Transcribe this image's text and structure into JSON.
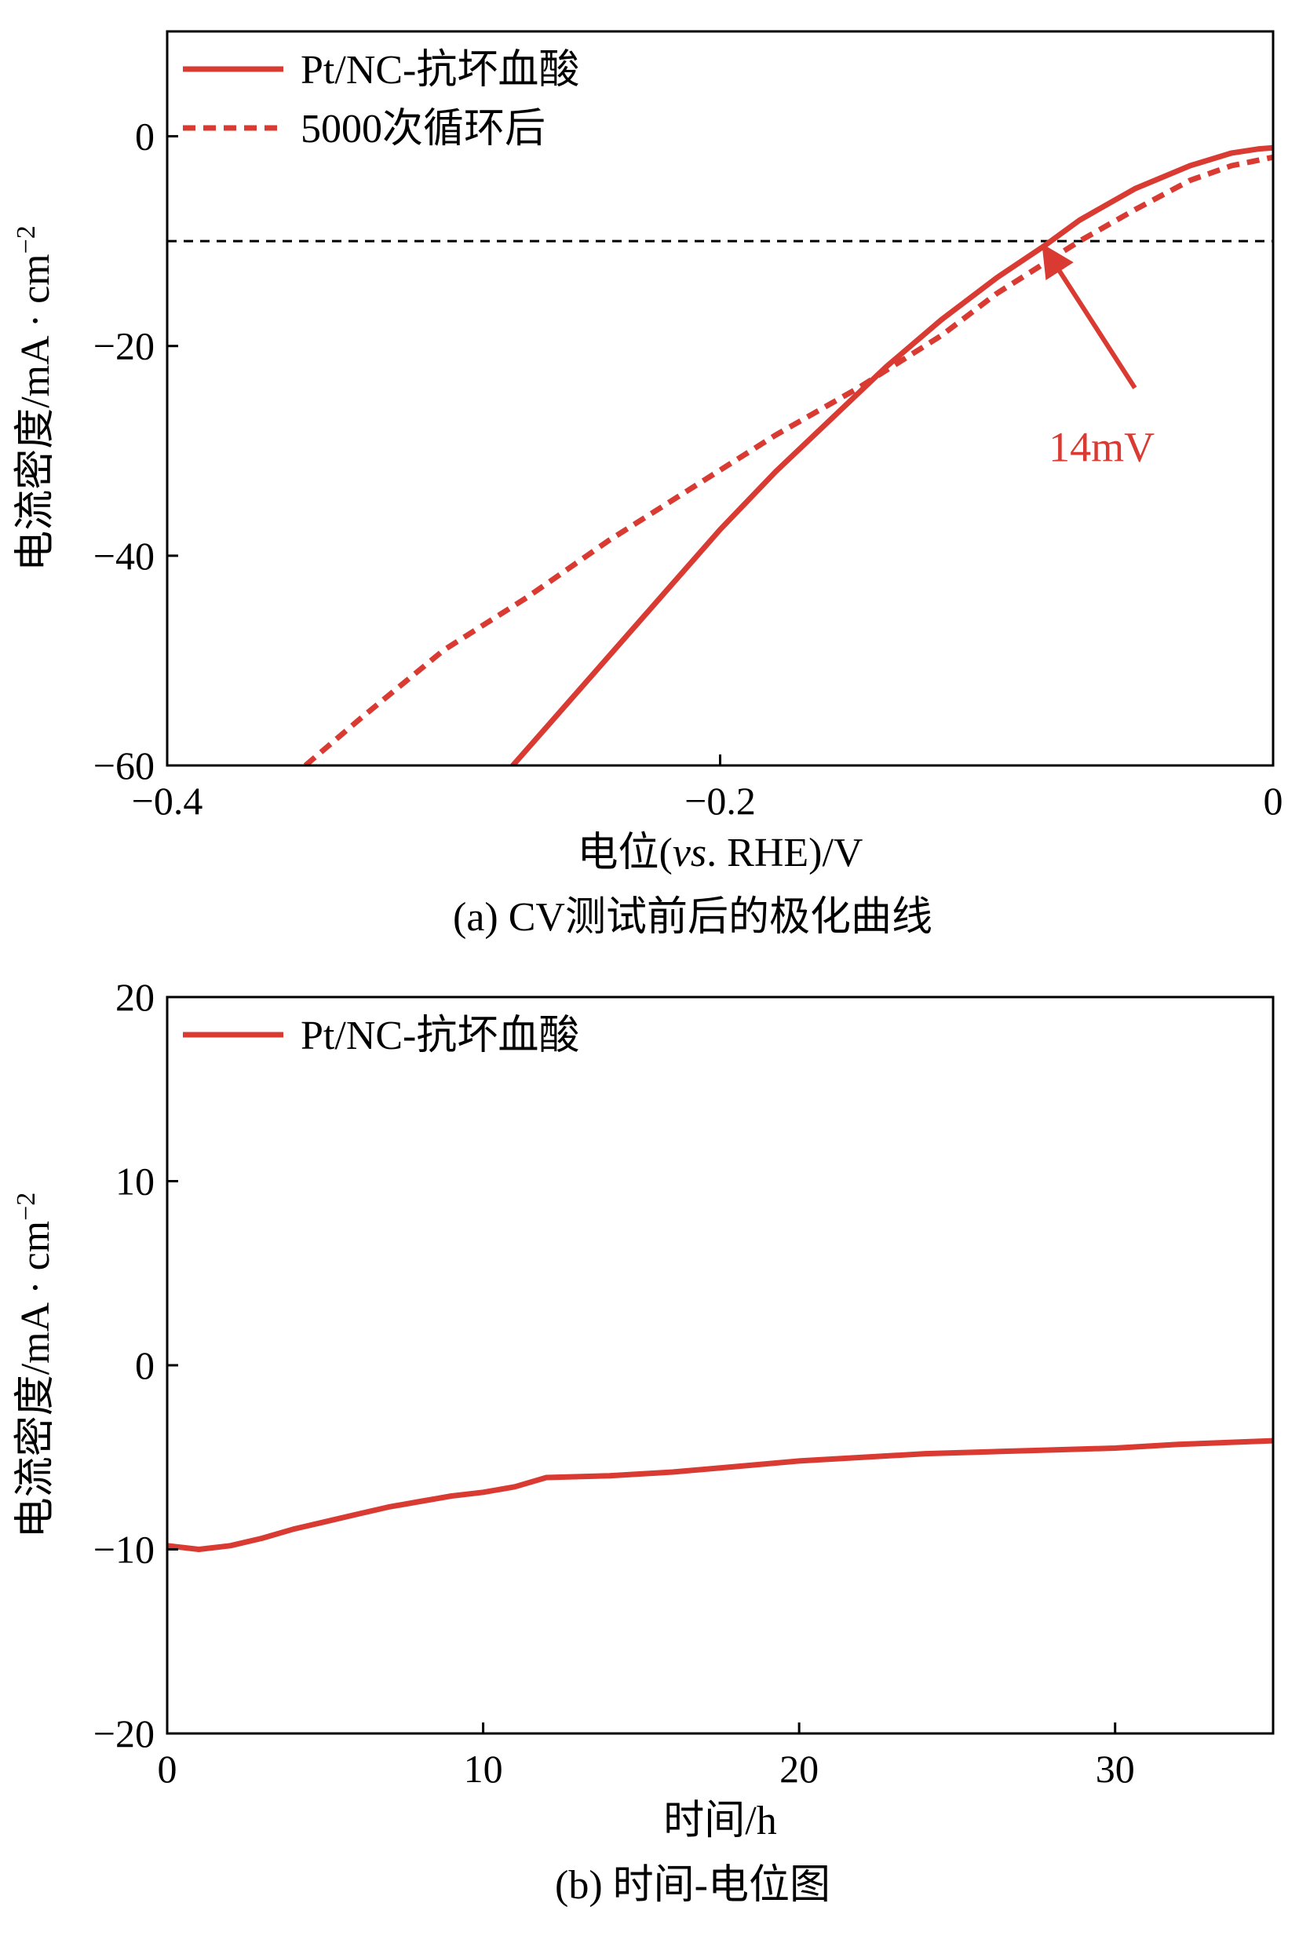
{
  "colors": {
    "series": "#d93a32",
    "reference": "#000000",
    "axis": "#000000"
  },
  "chart_data": [
    {
      "type": "line",
      "caption": "(a) CV测试前后的极化曲线",
      "xlabel_parts": [
        "电位(",
        "vs",
        ". RHE)/V"
      ],
      "ylabel": "电流密度/mA · cm",
      "ylabel_sup": "−2",
      "xlim": [
        -0.4,
        0
      ],
      "ylim": [
        -60,
        10
      ],
      "xticks": [
        -0.4,
        -0.2,
        0
      ],
      "xtick_labels": [
        "−0.4",
        "−0.2",
        "0"
      ],
      "yticks": [
        -60,
        -40,
        -20,
        0
      ],
      "ytick_labels": [
        "−60",
        "−40",
        "−20",
        "0"
      ],
      "legend_position": "top-left",
      "series": [
        {
          "name": "Pt/NC-抗坏血酸",
          "style": "solid",
          "x": [
            -0.275,
            -0.26,
            -0.24,
            -0.22,
            -0.2,
            -0.18,
            -0.16,
            -0.14,
            -0.12,
            -0.1,
            -0.083,
            -0.07,
            -0.05,
            -0.03,
            -0.015,
            -0.005,
            0
          ],
          "y": [
            -60,
            -55.5,
            -49.5,
            -43.5,
            -37.5,
            -32,
            -27,
            -22,
            -17.5,
            -13.5,
            -10.5,
            -8,
            -5,
            -2.8,
            -1.6,
            -1.2,
            -1.1
          ]
        },
        {
          "name": "5000次循环后",
          "style": "dashed",
          "x": [
            -0.35,
            -0.33,
            -0.3,
            -0.27,
            -0.24,
            -0.21,
            -0.18,
            -0.15,
            -0.12,
            -0.1,
            -0.085,
            -0.07,
            -0.05,
            -0.03,
            -0.015,
            0
          ],
          "y": [
            -60,
            -55.5,
            -49,
            -44,
            -38.5,
            -33.5,
            -28.5,
            -24,
            -19,
            -15,
            -12.5,
            -10,
            -7,
            -4.2,
            -2.8,
            -2
          ]
        }
      ],
      "reference_line": {
        "y": -10,
        "style": "dashed"
      },
      "annotation": {
        "text": "14mV",
        "x": -0.062,
        "y": -31,
        "arrow_from": [
          -0.05,
          -24
        ],
        "arrow_to": [
          -0.083,
          -10.5
        ]
      }
    },
    {
      "type": "line",
      "caption": "(b) 时间-电位图",
      "xlabel": "时间/h",
      "ylabel": "电流密度/mA · cm",
      "ylabel_sup": "−2",
      "xlim": [
        0,
        35
      ],
      "ylim": [
        -20,
        20
      ],
      "xticks": [
        0,
        10,
        20,
        30
      ],
      "xtick_labels": [
        "0",
        "10",
        "20",
        "30"
      ],
      "yticks": [
        -20,
        -10,
        0,
        10,
        20
      ],
      "ytick_labels": [
        "−20",
        "−10",
        "0",
        "10",
        "20"
      ],
      "legend_position": "top-left",
      "series": [
        {
          "name": "Pt/NC-抗坏血酸",
          "style": "solid",
          "x": [
            0,
            1,
            2,
            3,
            4,
            5,
            6,
            7,
            8,
            9,
            10,
            11,
            12,
            14,
            16,
            18,
            20,
            22,
            24,
            26,
            28,
            30,
            32,
            35
          ],
          "y": [
            -9.8,
            -10,
            -9.8,
            -9.4,
            -8.9,
            -8.5,
            -8.1,
            -7.7,
            -7.4,
            -7.1,
            -6.9,
            -6.6,
            -6.1,
            -6.0,
            -5.8,
            -5.5,
            -5.2,
            -5.0,
            -4.8,
            -4.7,
            -4.6,
            -4.5,
            -4.3,
            -4.1
          ]
        }
      ]
    }
  ]
}
